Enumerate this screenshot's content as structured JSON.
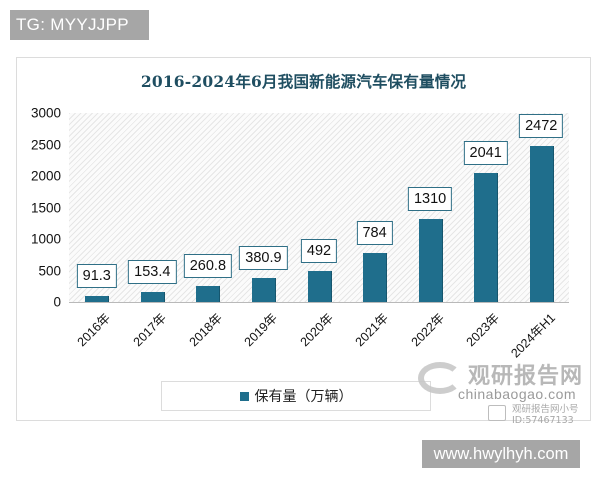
{
  "watermarks": {
    "top_left": "TG: MYYJJPP",
    "bottom_right": "www.hwylhyh.com",
    "brand_cn": "观研报告网",
    "brand_url": "chinabaogao.com",
    "brand_sub_line1": "观研报告网小号",
    "brand_sub_line2": "ID:57467133"
  },
  "chart": {
    "title": "2016-2024年6月我国新能源汽车保有量情况",
    "legend_label": "保有量（万辆）",
    "y_ticks": [
      "3000",
      "2500",
      "2000",
      "1500",
      "1000",
      "500",
      "0"
    ],
    "bar_color": "#1f6e8c",
    "bars": [
      {
        "category": "2016年",
        "label": "91.3"
      },
      {
        "category": "2017年",
        "label": "153.4"
      },
      {
        "category": "2018年",
        "label": "260.8"
      },
      {
        "category": "2019年",
        "label": "380.9"
      },
      {
        "category": "2020年",
        "label": "492"
      },
      {
        "category": "2021年",
        "label": "784"
      },
      {
        "category": "2022年",
        "label": "1310"
      },
      {
        "category": "2023年",
        "label": "2041"
      },
      {
        "category": "2024年H1",
        "label": "2472"
      }
    ]
  },
  "chart_data": {
    "type": "bar",
    "title": "2016-2024年6月我国新能源汽车保有量情况",
    "categories": [
      "2016年",
      "2017年",
      "2018年",
      "2019年",
      "2020年",
      "2021年",
      "2022年",
      "2023年",
      "2024年H1"
    ],
    "series": [
      {
        "name": "保有量（万辆）",
        "values": [
          91.3,
          153.4,
          260.8,
          380.9,
          492,
          784,
          1310,
          2041,
          2472
        ]
      }
    ],
    "xlabel": "",
    "ylabel": "",
    "ylim": [
      0,
      3000
    ],
    "yticks": [
      0,
      500,
      1000,
      1500,
      2000,
      2500,
      3000
    ],
    "grid": false,
    "legend_position": "bottom",
    "data_labels": true,
    "colors": [
      "#1f6e8c"
    ]
  }
}
